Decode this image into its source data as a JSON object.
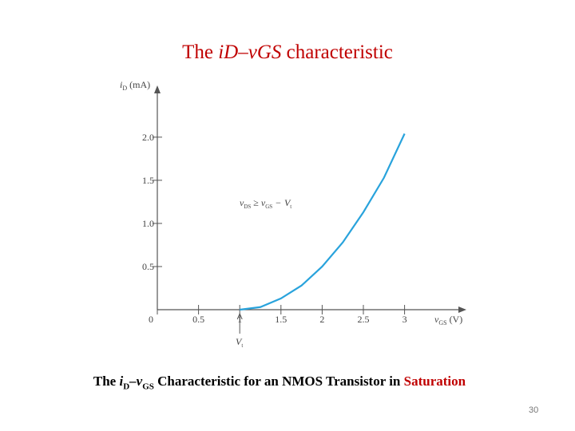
{
  "chart_data": {
    "type": "line",
    "title": {
      "prefix": "The",
      "italic": "iD–vGS",
      "suffix": "characteristic"
    },
    "x_label": {
      "base": "v",
      "sub": "GS",
      "unit": "(V)"
    },
    "y_label": {
      "base": "i",
      "sub": "D",
      "unit": "(mA)"
    },
    "annotation": {
      "a": "v",
      "a_sub": "DS",
      "op": "≥",
      "b": "v",
      "b_sub": "GS",
      "minus": "−",
      "c": "V",
      "c_sub": "t"
    },
    "vt_marker": {
      "base": "V",
      "sub": "t"
    },
    "x": [
      1,
      1.25,
      1.5,
      1.75,
      2,
      2.25,
      2.5,
      2.75,
      3
    ],
    "values": [
      0,
      0.03,
      0.13,
      0.28,
      0.5,
      0.78,
      1.13,
      1.53,
      2.04
    ],
    "color": "#29a3dc",
    "xlim": [
      0,
      3.75
    ],
    "xticks": [
      0,
      0.5,
      1,
      1.5,
      2,
      2.5,
      3
    ],
    "ylim": [
      0,
      2.6
    ],
    "yticks": [
      0.5,
      {
        "value": 1,
        "label": "1.0"
      },
      1.5,
      {
        "value": 2,
        "label": "2.0"
      }
    ],
    "caption": [
      "The",
      "i",
      "D",
      "–v",
      "GS",
      "Characteristic for an NMOS Transistor in",
      "Saturation"
    ],
    "page_number": "30"
  }
}
